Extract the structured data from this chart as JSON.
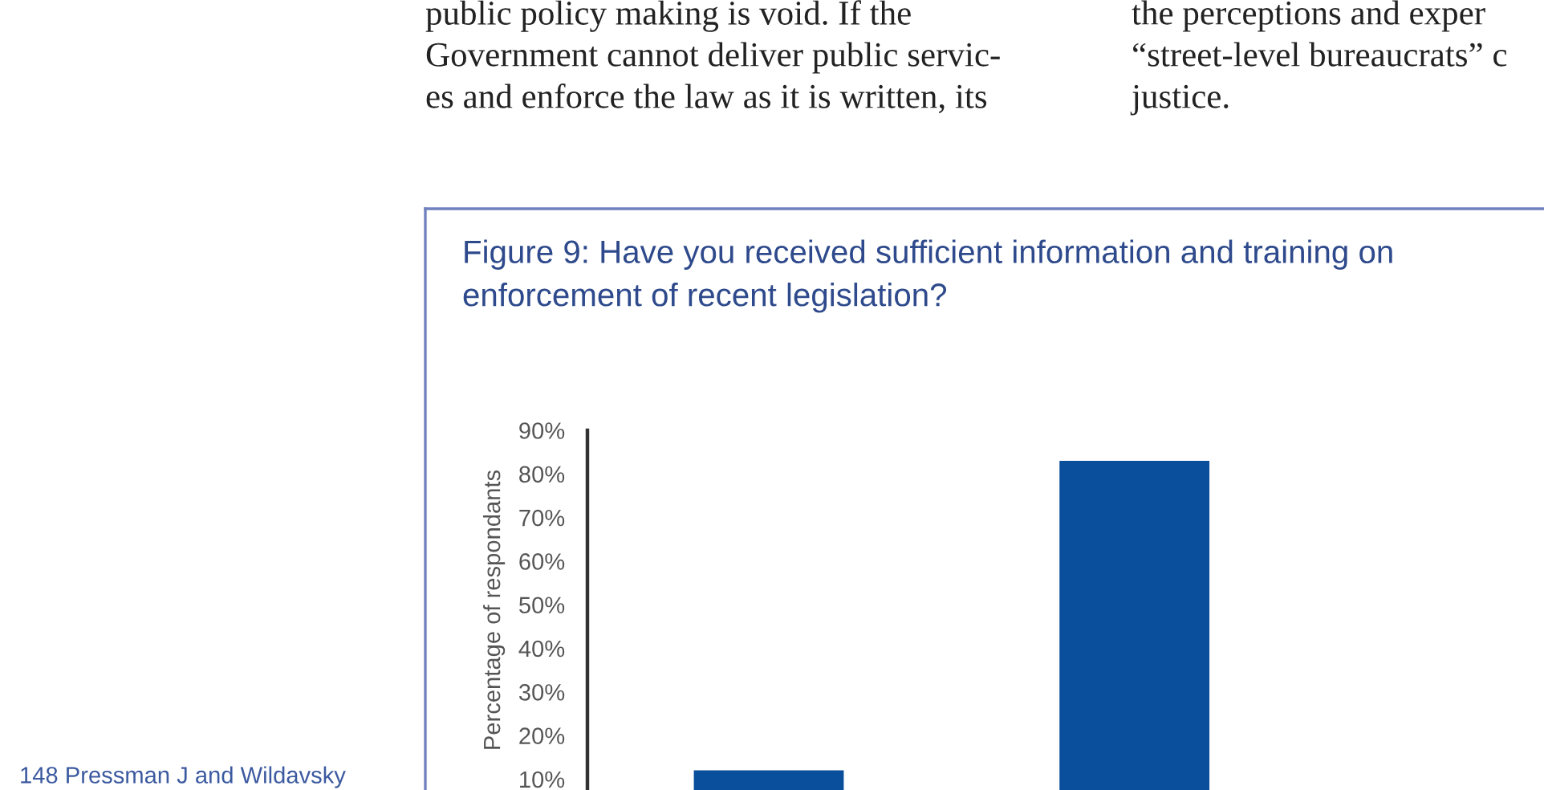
{
  "chart_data": {
    "type": "bar",
    "title": "Figure 9: Have you received sufficient information and training on\nenforcement of recent legislation?",
    "ylabel": "Percentage of respondants",
    "categories": [
      null,
      null
    ],
    "values": [
      12,
      83
    ],
    "color": "#0a4f9c",
    "ylim": [
      7.5,
      90
    ],
    "yticks": [
      {
        "value": 10,
        "label": "10%"
      },
      {
        "value": 20,
        "label": "20%"
      },
      {
        "value": 30,
        "label": "30%"
      },
      {
        "value": 40,
        "label": "40%"
      },
      {
        "value": 50,
        "label": "50%"
      },
      {
        "value": 60,
        "label": "60%"
      },
      {
        "value": 70,
        "label": "70%"
      },
      {
        "value": 80,
        "label": "80%"
      },
      {
        "value": 90,
        "label": "90%"
      }
    ],
    "grid": false,
    "legend": false,
    "annotations": [
      "public policy making is void. If the",
      "Government cannot deliver public servic-",
      "es and enforce the law as it is written, its",
      "the perceptions and exper",
      "“street-level bureaucrats” c",
      "justice.",
      "148 Pressman J and Wildavsky"
    ]
  }
}
